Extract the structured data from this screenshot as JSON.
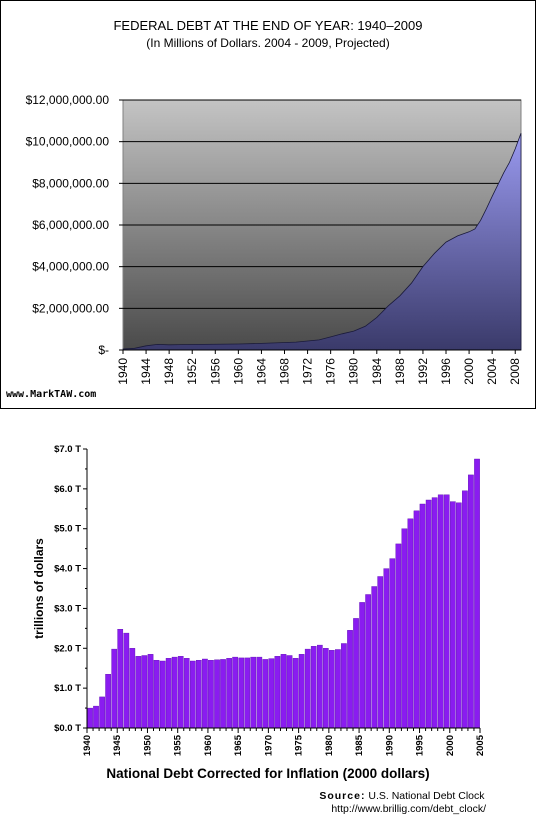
{
  "chart_data": [
    {
      "type": "area",
      "title": "FEDERAL DEBT AT THE END OF YEAR: 1940–2009",
      "subtitle": "(In Millions of Dollars. 2004 - 2009, Projected)",
      "watermark": "www.MarkTAW.com",
      "xlim": [
        1940,
        2009
      ],
      "ylim": [
        0,
        12000000
      ],
      "y_ticks": [
        0,
        2000000,
        4000000,
        6000000,
        8000000,
        10000000,
        12000000
      ],
      "y_tick_labels": [
        "$-",
        "$2,000,000.00",
        "$4,000,000.00",
        "$6,000,000.00",
        "$8,000,000.00",
        "$10,000,000.00",
        "$12,000,000.00"
      ],
      "x_tick_labels": [
        "1940",
        "1944",
        "1948",
        "1952",
        "1956",
        "1960",
        "1964",
        "1968",
        "1972",
        "1976",
        "1980",
        "1984",
        "1988",
        "1992",
        "1996",
        "2000",
        "2004",
        "2008"
      ],
      "grid": true,
      "colors": {
        "area_fill_top": "#9a9af0",
        "area_fill_bottom": "#3a3a6a",
        "plot_bg_top": "#c4c4c4",
        "plot_bg_bottom": "#4a4a4a"
      },
      "x": [
        1940,
        1942,
        1944,
        1946,
        1948,
        1950,
        1954,
        1960,
        1964,
        1970,
        1974,
        1976,
        1978,
        1980,
        1982,
        1984,
        1986,
        1988,
        1990,
        1992,
        1994,
        1996,
        1998,
        2000,
        2001,
        2002,
        2003,
        2004,
        2005,
        2006,
        2007,
        2008,
        2009
      ],
      "values": [
        50000,
        80000,
        200000,
        270000,
        250000,
        257000,
        270000,
        290000,
        317000,
        381000,
        484000,
        629000,
        776000,
        909000,
        1137000,
        1564000,
        2120000,
        2601000,
        3206000,
        4002000,
        4643000,
        5181000,
        5478000,
        5674000,
        5807000,
        6228000,
        6783000,
        7379000,
        7933000,
        8507000,
        9008000,
        9654000,
        10413000
      ]
    },
    {
      "type": "bar",
      "title": "National Debt Corrected for Inflation (2000 dollars)",
      "ylabel": "trillions of dollars",
      "source_label": "Source:",
      "source_name": "U.S. National Debt Clock",
      "source_url": "http://www.brillig.com/debt_clock/",
      "xlim": [
        1940,
        2004
      ],
      "ylim": [
        0,
        7.0
      ],
      "y_ticks": [
        0,
        1.0,
        2.0,
        3.0,
        4.0,
        5.0,
        6.0,
        7.0
      ],
      "y_tick_labels": [
        "$0.0 T",
        "$1.0 T",
        "$2.0 T",
        "$3.0 T",
        "$4.0 T",
        "$5.0 T",
        "$6.0 T",
        "$7.0 T"
      ],
      "x_tick_labels": [
        "1940",
        "1945",
        "1950",
        "1955",
        "1960",
        "1965",
        "1970",
        "1975",
        "1980",
        "1985",
        "1990",
        "1995",
        "2000",
        "2005"
      ],
      "colors": {
        "bar": "#8a1cf0",
        "bar_edge": "#5a0ab0"
      },
      "categories": [
        1940,
        1941,
        1942,
        1943,
        1944,
        1945,
        1946,
        1947,
        1948,
        1949,
        1950,
        1951,
        1952,
        1953,
        1954,
        1955,
        1956,
        1957,
        1958,
        1959,
        1960,
        1961,
        1962,
        1963,
        1964,
        1965,
        1966,
        1967,
        1968,
        1969,
        1970,
        1971,
        1972,
        1973,
        1974,
        1975,
        1976,
        1977,
        1978,
        1979,
        1980,
        1981,
        1982,
        1983,
        1984,
        1985,
        1986,
        1987,
        1988,
        1989,
        1990,
        1991,
        1992,
        1993,
        1994,
        1995,
        1996,
        1997,
        1998,
        1999,
        2000,
        2001,
        2002,
        2003,
        2004
      ],
      "values": [
        0.5,
        0.55,
        0.78,
        1.35,
        1.98,
        2.48,
        2.38,
        2.0,
        1.8,
        1.82,
        1.85,
        1.7,
        1.68,
        1.75,
        1.78,
        1.8,
        1.75,
        1.68,
        1.7,
        1.73,
        1.7,
        1.71,
        1.72,
        1.75,
        1.78,
        1.76,
        1.76,
        1.78,
        1.78,
        1.72,
        1.74,
        1.8,
        1.85,
        1.82,
        1.75,
        1.85,
        1.98,
        2.05,
        2.08,
        2.0,
        1.95,
        1.97,
        2.12,
        2.45,
        2.75,
        3.15,
        3.35,
        3.55,
        3.8,
        4.0,
        4.25,
        4.62,
        5.0,
        5.25,
        5.45,
        5.62,
        5.72,
        5.78,
        5.85,
        5.85,
        5.68,
        5.65,
        5.95,
        6.35,
        6.75
      ]
    }
  ]
}
